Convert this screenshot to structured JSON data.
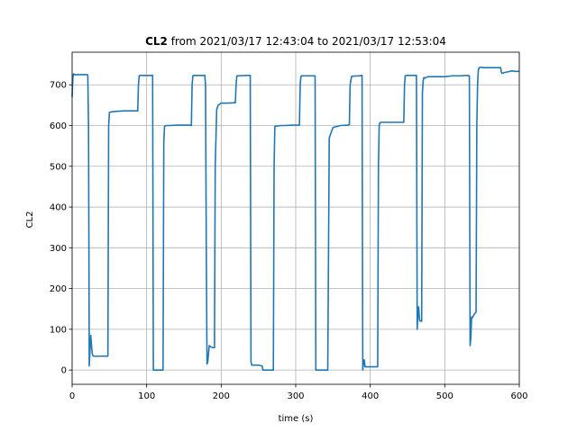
{
  "chart_data": {
    "type": "line",
    "title_bold": "CL2",
    "title_rest": " from 2021/03/17 12:43:04 to 2021/03/17 12:53:04",
    "xlabel": "time (s)",
    "ylabel": "CL2",
    "xlim": [
      0,
      600
    ],
    "ylim": [
      -35,
      780
    ],
    "xticks": [
      0,
      100,
      200,
      300,
      400,
      500,
      600
    ],
    "yticks": [
      0,
      100,
      200,
      300,
      400,
      500,
      600,
      700
    ],
    "grid": true,
    "color": "#1f77b4",
    "series": [
      {
        "x": [
          0,
          1,
          2,
          3,
          20,
          21,
          22,
          23,
          24,
          25,
          26,
          27,
          28,
          29,
          35,
          48,
          49,
          50,
          51,
          55,
          60,
          70,
          80,
          88,
          89,
          90,
          91,
          92,
          108,
          109,
          110,
          111,
          112,
          121,
          122,
          123,
          124,
          126,
          130,
          140,
          150,
          159,
          160,
          161,
          162,
          163,
          177,
          178,
          179,
          180,
          181,
          182,
          183,
          184,
          188,
          189,
          190,
          191,
          192,
          194,
          196,
          200,
          210,
          217,
          218,
          219,
          220,
          221,
          235,
          236,
          237,
          238,
          239,
          240,
          241,
          245,
          250,
          255,
          256,
          260,
          270,
          271,
          272,
          275,
          280,
          285,
          295,
          305,
          306,
          307,
          308,
          325,
          326,
          327,
          328,
          340,
          341,
          342,
          343,
          345,
          350,
          360,
          370,
          371,
          372,
          373,
          375,
          385,
          386,
          387,
          388,
          389,
          390,
          391,
          392,
          393,
          400,
          410,
          411,
          412,
          413,
          415,
          420,
          430,
          440,
          445,
          446,
          447,
          448,
          449,
          462,
          463,
          464,
          465,
          466,
          467,
          468,
          469,
          470,
          471,
          472,
          473,
          475,
          478,
          480,
          490,
          500,
          510,
          520,
          530,
          531,
          532,
          533,
          534,
          535,
          536,
          537,
          538,
          539,
          540,
          541,
          542,
          543,
          544,
          545,
          546,
          547,
          548,
          549,
          550,
          551,
          552,
          555,
          560,
          570,
          575,
          576,
          577,
          580,
          585,
          590,
          595,
          600
        ],
        "y": [
          670,
          720,
          727,
          725,
          725,
          724,
          600,
          10,
          50,
          85,
          60,
          40,
          35,
          34,
          34,
          34,
          600,
          632,
          633,
          634,
          635,
          636,
          636,
          636,
          700,
          722,
          723,
          723,
          723,
          0,
          0,
          0,
          0,
          0,
          0,
          560,
          598,
          600,
          600,
          601,
          601,
          601,
          600,
          700,
          722,
          723,
          723,
          723,
          700,
          300,
          15,
          20,
          40,
          60,
          55,
          55,
          55,
          55,
          500,
          640,
          650,
          655,
          655,
          656,
          656,
          656,
          700,
          722,
          723,
          723,
          723,
          723,
          723,
          20,
          12,
          12,
          12,
          10,
          0,
          0,
          0,
          500,
          598,
          599,
          600,
          600,
          601,
          601,
          700,
          721,
          722,
          722,
          722,
          0,
          0,
          0,
          0,
          0,
          0,
          570,
          595,
          600,
          601,
          602,
          602,
          700,
          721,
          722,
          722,
          722,
          723,
          723,
          0,
          20,
          25,
          8,
          8,
          8,
          500,
          600,
          607,
          608,
          608,
          608,
          608,
          608,
          700,
          722,
          723,
          723,
          723,
          100,
          140,
          155,
          125,
          120,
          120,
          120,
          680,
          710,
          718,
          716,
          718,
          720,
          720,
          720,
          720,
          722,
          722,
          723,
          723,
          722,
          722,
          60,
          80,
          130,
          128,
          132,
          135,
          138,
          140,
          142,
          600,
          700,
          735,
          742,
          742,
          743,
          743,
          743,
          742,
          742,
          742,
          742,
          742,
          742,
          730,
          728,
          730,
          732,
          734,
          733,
          733
        ]
      }
    ]
  }
}
